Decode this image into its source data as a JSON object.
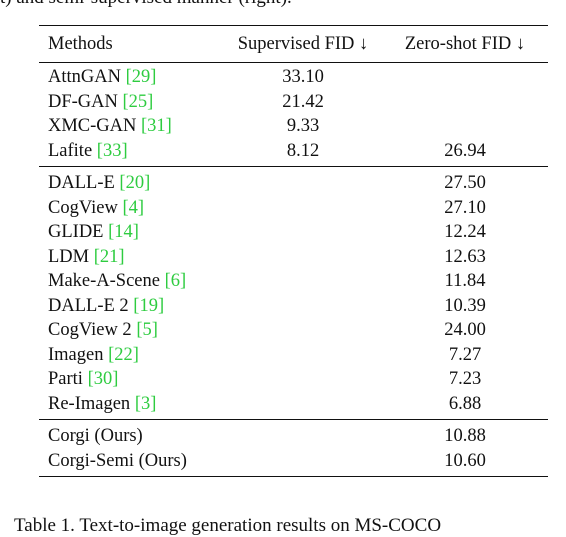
{
  "top_caption_fragment": "t) and semi-supervised manner (right).",
  "bottom_caption_fragment": "Table 1. Text-to-image generation results on MS-COCO",
  "table": {
    "headers": {
      "methods": "Methods",
      "supervised": "Supervised FID ↓",
      "zeroshot": "Zero-shot FID ↓"
    },
    "groups": [
      {
        "rows": [
          {
            "name": "AttnGAN ",
            "ref": "[29]",
            "sup": "33.10",
            "zs": ""
          },
          {
            "name": "DF-GAN ",
            "ref": "[25]",
            "sup": "21.42",
            "zs": ""
          },
          {
            "name": "XMC-GAN ",
            "ref": "[31]",
            "sup": "9.33",
            "zs": ""
          },
          {
            "name": "Lafite ",
            "ref": "[33]",
            "sup": "8.12",
            "zs": "26.94"
          }
        ]
      },
      {
        "rows": [
          {
            "name": "DALL-E ",
            "ref": "[20]",
            "sup": "",
            "zs": "27.50"
          },
          {
            "name": "CogView ",
            "ref": "[4]",
            "sup": "",
            "zs": "27.10"
          },
          {
            "name": "GLIDE ",
            "ref": "[14]",
            "sup": "",
            "zs": "12.24"
          },
          {
            "name": "LDM ",
            "ref": "[21]",
            "sup": "",
            "zs": "12.63"
          },
          {
            "name": "Make-A-Scene ",
            "ref": "[6]",
            "sup": "",
            "zs": "11.84"
          },
          {
            "name": "DALL-E 2 ",
            "ref": "[19]",
            "sup": "",
            "zs": "10.39"
          },
          {
            "name": "CogView 2 ",
            "ref": "[5]",
            "sup": "",
            "zs": "24.00"
          },
          {
            "name": "Imagen ",
            "ref": "[22]",
            "sup": "",
            "zs": "7.27"
          },
          {
            "name": "Parti ",
            "ref": "[30]",
            "sup": "",
            "zs": "7.23"
          },
          {
            "name": "Re-Imagen ",
            "ref": "[3]",
            "sup": "",
            "zs": "6.88"
          }
        ]
      },
      {
        "rows": [
          {
            "name": "Corgi (Ours)",
            "ref": "",
            "sup": "",
            "zs": "10.88"
          },
          {
            "name": "Corgi-Semi (Ours)",
            "ref": "",
            "sup": "",
            "zs": "10.60"
          }
        ]
      }
    ]
  }
}
